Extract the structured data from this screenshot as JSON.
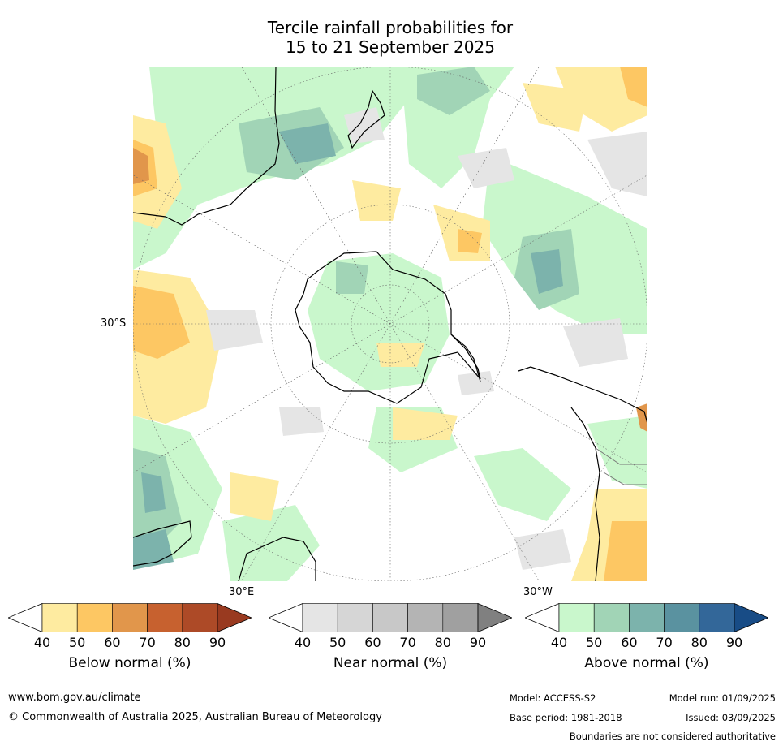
{
  "title_line1": "Tercile rainfall probabilities for",
  "title_line2": "15 to 21 September 2025",
  "map": {
    "lat_label": "30°S",
    "lon_label_east": "30°E",
    "lon_label_west": "30°W"
  },
  "colorbars": [
    {
      "name": "Below normal",
      "title": "Below normal (%)",
      "ticks": [
        "40",
        "50",
        "60",
        "70",
        "80",
        "90"
      ],
      "colors": [
        "#ffffff",
        "#feeba0",
        "#fdc763",
        "#e1964b",
        "#c7612f",
        "#ad4a27",
        "#993a20"
      ]
    },
    {
      "name": "Near normal",
      "title": "Near normal (%)",
      "ticks": [
        "40",
        "50",
        "60",
        "70",
        "80",
        "90"
      ],
      "colors": [
        "#ffffff",
        "#e5e5e5",
        "#d6d6d6",
        "#c8c8c8",
        "#b4b4b4",
        "#a0a0a0",
        "#808080"
      ]
    },
    {
      "name": "Above normal",
      "title": "Above normal (%)",
      "ticks": [
        "40",
        "50",
        "60",
        "70",
        "80",
        "90"
      ],
      "colors": [
        "#ffffff",
        "#c9f7cc",
        "#a1d4b6",
        "#7cb3ac",
        "#5a92a0",
        "#336799",
        "#184c86"
      ]
    }
  ],
  "footer": {
    "website": "www.bom.gov.au/climate",
    "copyright": "© Commonwealth of Australia 2025, Australian Bureau of Meteorology",
    "model": "Model: ACCESS-S2",
    "base_period": "Base period: 1981-2018",
    "model_run": "Model run: 01/09/2025",
    "issued": "Issued: 03/09/2025",
    "disclaimer": "Boundaries are not considered authoritative"
  }
}
